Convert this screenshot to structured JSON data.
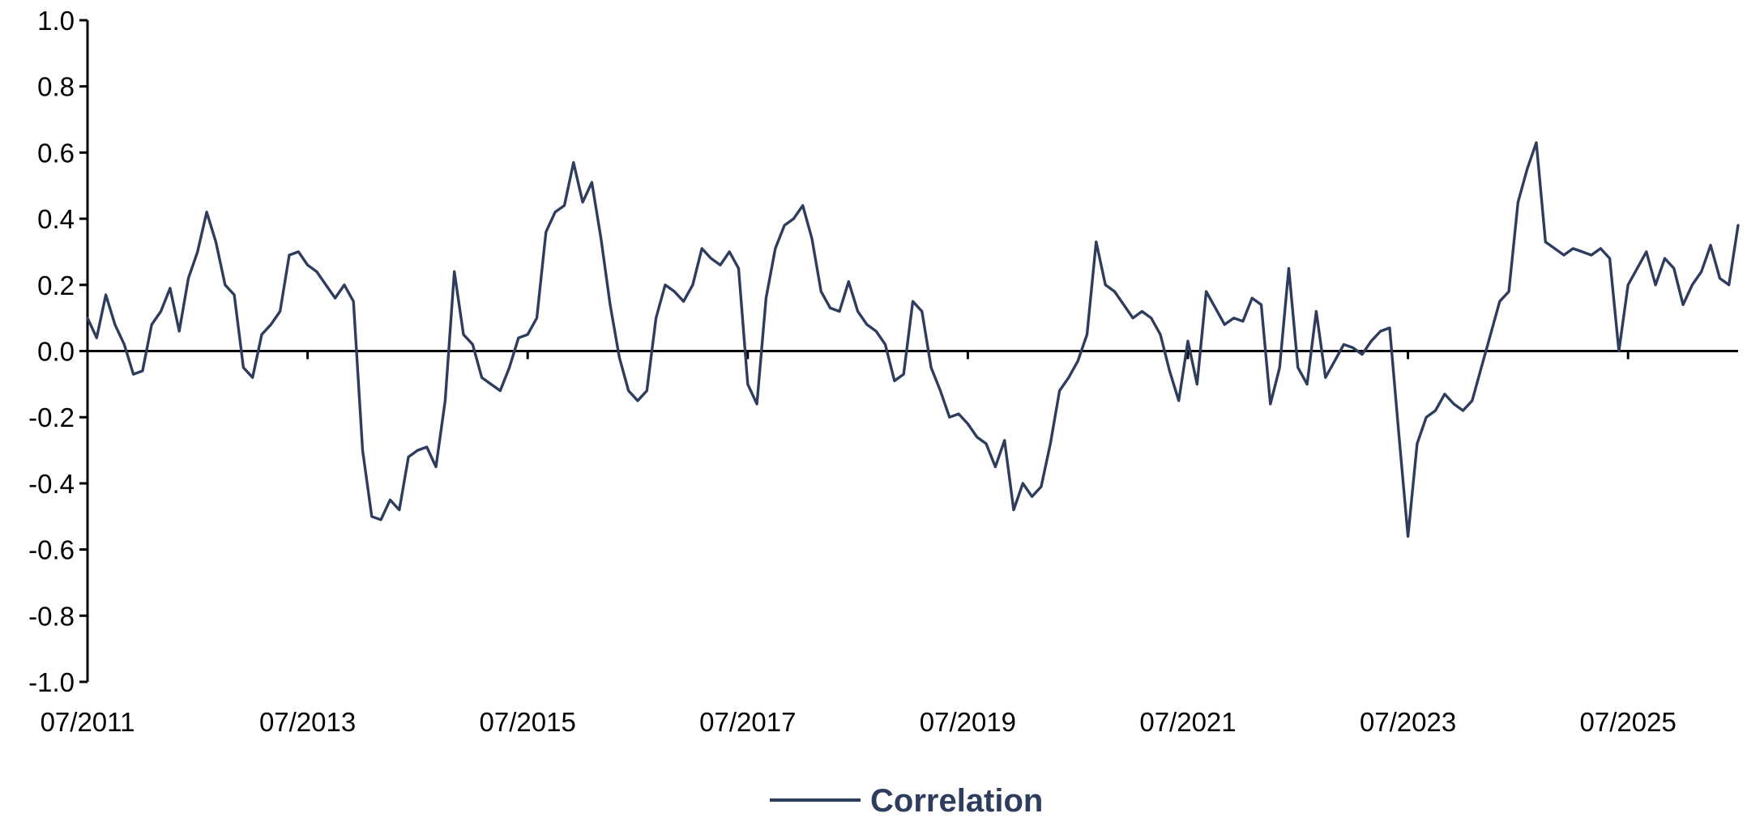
{
  "chart_data": {
    "type": "line",
    "xlim": [
      "2011-07",
      "2026-07"
    ],
    "ylim": [
      -1.0,
      1.0
    ],
    "y_ticks": [
      {
        "value": 1.0,
        "label": "1.0"
      },
      {
        "value": 0.8,
        "label": "0.8"
      },
      {
        "value": 0.6,
        "label": "0.6"
      },
      {
        "value": 0.4,
        "label": "0.4"
      },
      {
        "value": 0.2,
        "label": "0.2"
      },
      {
        "value": 0.0,
        "label": "0.0"
      },
      {
        "value": -0.2,
        "label": "-0.2"
      },
      {
        "value": -0.4,
        "label": "-0.4"
      },
      {
        "value": -0.6,
        "label": "-0.6"
      },
      {
        "value": -0.8,
        "label": "-0.8"
      },
      {
        "value": -1.0,
        "label": "-1.0"
      }
    ],
    "x_ticks": [
      {
        "value": "2011-07",
        "label": "07/2011"
      },
      {
        "value": "2013-07",
        "label": "07/2013"
      },
      {
        "value": "2015-07",
        "label": "07/2015"
      },
      {
        "value": "2017-07",
        "label": "07/2017"
      },
      {
        "value": "2019-07",
        "label": "07/2019"
      },
      {
        "value": "2021-07",
        "label": "07/2021"
      },
      {
        "value": "2023-07",
        "label": "07/2023"
      },
      {
        "value": "2025-07",
        "label": "07/2025"
      }
    ],
    "grid": false,
    "legend_position": "bottom-center",
    "series": [
      {
        "name": "Correlation",
        "color": "#2e3d5e",
        "points": [
          [
            "2011-07",
            0.1
          ],
          [
            "2011-08",
            0.04
          ],
          [
            "2011-09",
            0.17
          ],
          [
            "2011-10",
            0.08
          ],
          [
            "2011-11",
            0.02
          ],
          [
            "2011-12",
            -0.07
          ],
          [
            "2012-01",
            -0.06
          ],
          [
            "2012-02",
            0.08
          ],
          [
            "2012-03",
            0.12
          ],
          [
            "2012-04",
            0.19
          ],
          [
            "2012-05",
            0.06
          ],
          [
            "2012-06",
            0.22
          ],
          [
            "2012-07",
            0.3
          ],
          [
            "2012-08",
            0.42
          ],
          [
            "2012-09",
            0.33
          ],
          [
            "2012-10",
            0.2
          ],
          [
            "2012-11",
            0.17
          ],
          [
            "2012-12",
            -0.05
          ],
          [
            "2013-01",
            -0.08
          ],
          [
            "2013-02",
            0.05
          ],
          [
            "2013-03",
            0.08
          ],
          [
            "2013-04",
            0.12
          ],
          [
            "2013-05",
            0.29
          ],
          [
            "2013-06",
            0.3
          ],
          [
            "2013-07",
            0.26
          ],
          [
            "2013-08",
            0.24
          ],
          [
            "2013-09",
            0.2
          ],
          [
            "2013-10",
            0.16
          ],
          [
            "2013-11",
            0.2
          ],
          [
            "2013-12",
            0.15
          ],
          [
            "2014-01",
            -0.3
          ],
          [
            "2014-02",
            -0.5
          ],
          [
            "2014-03",
            -0.51
          ],
          [
            "2014-04",
            -0.45
          ],
          [
            "2014-05",
            -0.48
          ],
          [
            "2014-06",
            -0.32
          ],
          [
            "2014-07",
            -0.3
          ],
          [
            "2014-08",
            -0.29
          ],
          [
            "2014-09",
            -0.35
          ],
          [
            "2014-10",
            -0.15
          ],
          [
            "2014-11",
            0.24
          ],
          [
            "2014-12",
            0.05
          ],
          [
            "2015-01",
            0.02
          ],
          [
            "2015-02",
            -0.08
          ],
          [
            "2015-03",
            -0.1
          ],
          [
            "2015-04",
            -0.12
          ],
          [
            "2015-05",
            -0.05
          ],
          [
            "2015-06",
            0.04
          ],
          [
            "2015-07",
            0.05
          ],
          [
            "2015-08",
            0.1
          ],
          [
            "2015-09",
            0.36
          ],
          [
            "2015-10",
            0.42
          ],
          [
            "2015-11",
            0.44
          ],
          [
            "2015-12",
            0.57
          ],
          [
            "2016-01",
            0.45
          ],
          [
            "2016-02",
            0.51
          ],
          [
            "2016-03",
            0.34
          ],
          [
            "2016-04",
            0.14
          ],
          [
            "2016-05",
            -0.02
          ],
          [
            "2016-06",
            -0.12
          ],
          [
            "2016-07",
            -0.15
          ],
          [
            "2016-08",
            -0.12
          ],
          [
            "2016-09",
            0.1
          ],
          [
            "2016-10",
            0.2
          ],
          [
            "2016-11",
            0.18
          ],
          [
            "2016-12",
            0.15
          ],
          [
            "2017-01",
            0.2
          ],
          [
            "2017-02",
            0.31
          ],
          [
            "2017-03",
            0.28
          ],
          [
            "2017-04",
            0.26
          ],
          [
            "2017-05",
            0.3
          ],
          [
            "2017-06",
            0.25
          ],
          [
            "2017-07",
            -0.1
          ],
          [
            "2017-08",
            -0.16
          ],
          [
            "2017-09",
            0.16
          ],
          [
            "2017-10",
            0.31
          ],
          [
            "2017-11",
            0.38
          ],
          [
            "2017-12",
            0.4
          ],
          [
            "2018-01",
            0.44
          ],
          [
            "2018-02",
            0.34
          ],
          [
            "2018-03",
            0.18
          ],
          [
            "2018-04",
            0.13
          ],
          [
            "2018-05",
            0.12
          ],
          [
            "2018-06",
            0.21
          ],
          [
            "2018-07",
            0.12
          ],
          [
            "2018-08",
            0.08
          ],
          [
            "2018-09",
            0.06
          ],
          [
            "2018-10",
            0.02
          ],
          [
            "2018-11",
            -0.09
          ],
          [
            "2018-12",
            -0.07
          ],
          [
            "2019-01",
            0.15
          ],
          [
            "2019-02",
            0.12
          ],
          [
            "2019-03",
            -0.05
          ],
          [
            "2019-04",
            -0.12
          ],
          [
            "2019-05",
            -0.2
          ],
          [
            "2019-06",
            -0.19
          ],
          [
            "2019-07",
            -0.22
          ],
          [
            "2019-08",
            -0.26
          ],
          [
            "2019-09",
            -0.28
          ],
          [
            "2019-10",
            -0.35
          ],
          [
            "2019-11",
            -0.27
          ],
          [
            "2019-12",
            -0.48
          ],
          [
            "2020-01",
            -0.4
          ],
          [
            "2020-02",
            -0.44
          ],
          [
            "2020-03",
            -0.41
          ],
          [
            "2020-04",
            -0.28
          ],
          [
            "2020-05",
            -0.12
          ],
          [
            "2020-06",
            -0.08
          ],
          [
            "2020-07",
            -0.03
          ],
          [
            "2020-08",
            0.05
          ],
          [
            "2020-09",
            0.33
          ],
          [
            "2020-10",
            0.2
          ],
          [
            "2020-11",
            0.18
          ],
          [
            "2020-12",
            0.14
          ],
          [
            "2021-01",
            0.1
          ],
          [
            "2021-02",
            0.12
          ],
          [
            "2021-03",
            0.1
          ],
          [
            "2021-04",
            0.05
          ],
          [
            "2021-05",
            -0.06
          ],
          [
            "2021-06",
            -0.15
          ],
          [
            "2021-07",
            0.03
          ],
          [
            "2021-08",
            -0.1
          ],
          [
            "2021-09",
            0.18
          ],
          [
            "2021-10",
            0.13
          ],
          [
            "2021-11",
            0.08
          ],
          [
            "2021-12",
            0.1
          ],
          [
            "2022-01",
            0.09
          ],
          [
            "2022-02",
            0.16
          ],
          [
            "2022-03",
            0.14
          ],
          [
            "2022-04",
            -0.16
          ],
          [
            "2022-05",
            -0.05
          ],
          [
            "2022-06",
            0.25
          ],
          [
            "2022-07",
            -0.05
          ],
          [
            "2022-08",
            -0.1
          ],
          [
            "2022-09",
            0.12
          ],
          [
            "2022-10",
            -0.08
          ],
          [
            "2022-11",
            -0.03
          ],
          [
            "2022-12",
            0.02
          ],
          [
            "2023-01",
            0.01
          ],
          [
            "2023-02",
            -0.01
          ],
          [
            "2023-03",
            0.03
          ],
          [
            "2023-04",
            0.06
          ],
          [
            "2023-05",
            0.07
          ],
          [
            "2023-06",
            -0.25
          ],
          [
            "2023-07",
            -0.56
          ],
          [
            "2023-08",
            -0.28
          ],
          [
            "2023-09",
            -0.2
          ],
          [
            "2023-10",
            -0.18
          ],
          [
            "2023-11",
            -0.13
          ],
          [
            "2023-12",
            -0.16
          ],
          [
            "2024-01",
            -0.18
          ],
          [
            "2024-02",
            -0.15
          ],
          [
            "2024-03",
            -0.05
          ],
          [
            "2024-04",
            0.05
          ],
          [
            "2024-05",
            0.15
          ],
          [
            "2024-06",
            0.18
          ],
          [
            "2024-07",
            0.45
          ],
          [
            "2024-08",
            0.55
          ],
          [
            "2024-09",
            0.63
          ],
          [
            "2024-10",
            0.33
          ],
          [
            "2024-11",
            0.31
          ],
          [
            "2024-12",
            0.29
          ],
          [
            "2025-01",
            0.31
          ],
          [
            "2025-02",
            0.3
          ],
          [
            "2025-03",
            0.29
          ],
          [
            "2025-04",
            0.31
          ],
          [
            "2025-05",
            0.28
          ],
          [
            "2025-06",
            0.0
          ],
          [
            "2025-07",
            0.2
          ],
          [
            "2025-08",
            0.25
          ],
          [
            "2025-09",
            0.3
          ],
          [
            "2025-10",
            0.2
          ],
          [
            "2025-11",
            0.28
          ],
          [
            "2025-12",
            0.25
          ],
          [
            "2026-01",
            0.14
          ],
          [
            "2026-02",
            0.2
          ],
          [
            "2026-03",
            0.24
          ],
          [
            "2026-04",
            0.32
          ],
          [
            "2026-05",
            0.22
          ],
          [
            "2026-06",
            0.2
          ],
          [
            "2026-07",
            0.38
          ]
        ]
      }
    ]
  }
}
